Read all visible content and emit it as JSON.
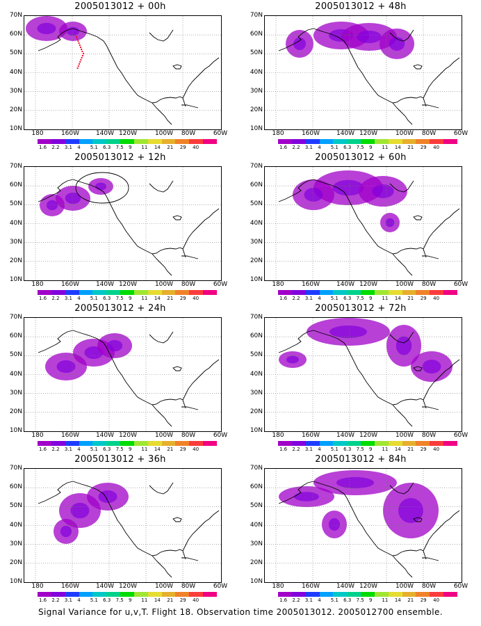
{
  "panels": [
    {
      "title": "2005013012 + 00h"
    },
    {
      "title": "2005013012 + 48h"
    },
    {
      "title": "2005013012 + 12h"
    },
    {
      "title": "2005013012 + 60h"
    },
    {
      "title": "2005013012 + 24h"
    },
    {
      "title": "2005013012 + 72h"
    },
    {
      "title": "2005013012 + 36h"
    },
    {
      "title": "2005013012 + 84h"
    }
  ],
  "lat_labels": [
    "70N",
    "60N",
    "50N",
    "40N",
    "30N",
    "20N",
    "10N"
  ],
  "lon_labels": [
    "180",
    "160W",
    "140W",
    "120W",
    "100W",
    "80W",
    "60W"
  ],
  "colorbar": {
    "labels": [
      "1.6",
      "2.2",
      "3.1",
      "4",
      "5.1",
      "6.3",
      "7.5",
      "9",
      "11",
      "14",
      "21",
      "29",
      "40"
    ],
    "colors": [
      "#a000c8",
      "#8200dc",
      "#1e3cff",
      "#00a0ff",
      "#00c8c8",
      "#00d28c",
      "#00dc00",
      "#a0e632",
      "#e6dc32",
      "#e6af2d",
      "#f08228",
      "#fa3c3c",
      "#f00082"
    ]
  },
  "caption": "Signal Variance for u,v,T. Flight 18. Observation time 2005013012. 2005012700 ensemble."
}
